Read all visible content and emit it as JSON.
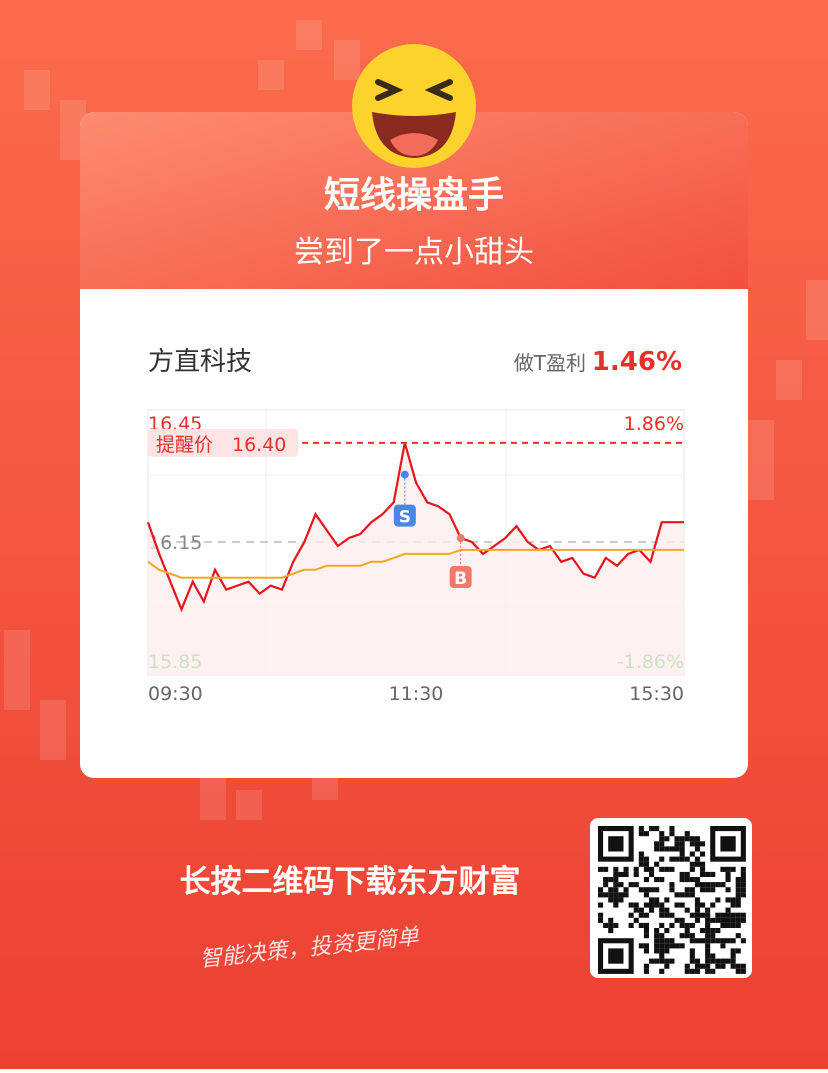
{
  "header": {
    "title": "短线操盘手",
    "subtitle": "尝到了一点小甜头"
  },
  "stock": {
    "name": "方直科技",
    "profit_label": "做T盈利",
    "profit_value": "1.46%"
  },
  "chart_data": {
    "type": "line",
    "categories": [
      "09:30",
      null,
      null,
      null,
      null,
      null,
      null,
      null,
      null,
      null,
      null,
      null,
      null,
      null,
      null,
      null,
      null,
      null,
      null,
      null,
      null,
      null,
      null,
      null,
      "11:30",
      null,
      null,
      null,
      null,
      null,
      null,
      null,
      null,
      null,
      null,
      null,
      null,
      null,
      null,
      null,
      null,
      null,
      null,
      null,
      null,
      null,
      null,
      null,
      "15:30"
    ],
    "series": [
      {
        "color": "#e8141b",
        "values": [
          16.2,
          16.12,
          16.05,
          15.98,
          16.05,
          16.0,
          16.08,
          16.03,
          16.04,
          16.05,
          16.02,
          16.04,
          16.03,
          16.1,
          16.15,
          16.22,
          16.18,
          16.14,
          16.16,
          16.17,
          16.2,
          16.22,
          16.25,
          16.4,
          16.3,
          16.25,
          16.24,
          16.22,
          16.16,
          16.15,
          16.12,
          16.14,
          16.16,
          16.19,
          16.15,
          16.13,
          16.14,
          16.1,
          16.11,
          16.07,
          16.06,
          16.11,
          16.09,
          16.12,
          16.13,
          16.1,
          16.2,
          16.2,
          16.2
        ]
      },
      {
        "color": "#f5a623",
        "values": [
          16.1,
          16.08,
          16.07,
          16.06,
          16.06,
          16.06,
          16.06,
          16.06,
          16.06,
          16.06,
          16.06,
          16.06,
          16.06,
          16.07,
          16.08,
          16.08,
          16.09,
          16.09,
          16.09,
          16.09,
          16.1,
          16.1,
          16.11,
          16.12,
          16.12,
          16.12,
          16.12,
          16.12,
          16.13,
          16.13,
          16.13,
          16.13,
          16.13,
          16.13,
          16.13,
          16.13,
          16.13,
          16.13,
          16.13,
          16.13,
          16.13,
          16.13,
          16.13,
          16.13,
          16.13,
          16.13,
          16.13,
          16.13,
          16.13
        ]
      }
    ],
    "ylim": [
      15.85,
      16.45
    ],
    "yticks": [
      16.45,
      16.15,
      15.85
    ],
    "y2lim": [
      -1.86,
      1.86
    ],
    "y2ticks": [
      {
        "value": 1.86,
        "label": "1.86%"
      },
      {
        "value": -1.86,
        "label": "-1.86%"
      }
    ],
    "alert": {
      "label": "提醒价",
      "value": 16.4,
      "value_label": "16.40"
    },
    "markers": [
      {
        "label": "S",
        "x": 23,
        "value": 16.32
      },
      {
        "label": "B",
        "x": 28,
        "value": 16.16
      }
    ]
  },
  "footer": {
    "cta": "长按二维码下载东方财富",
    "slogan": "智能决策，投资更简单"
  }
}
